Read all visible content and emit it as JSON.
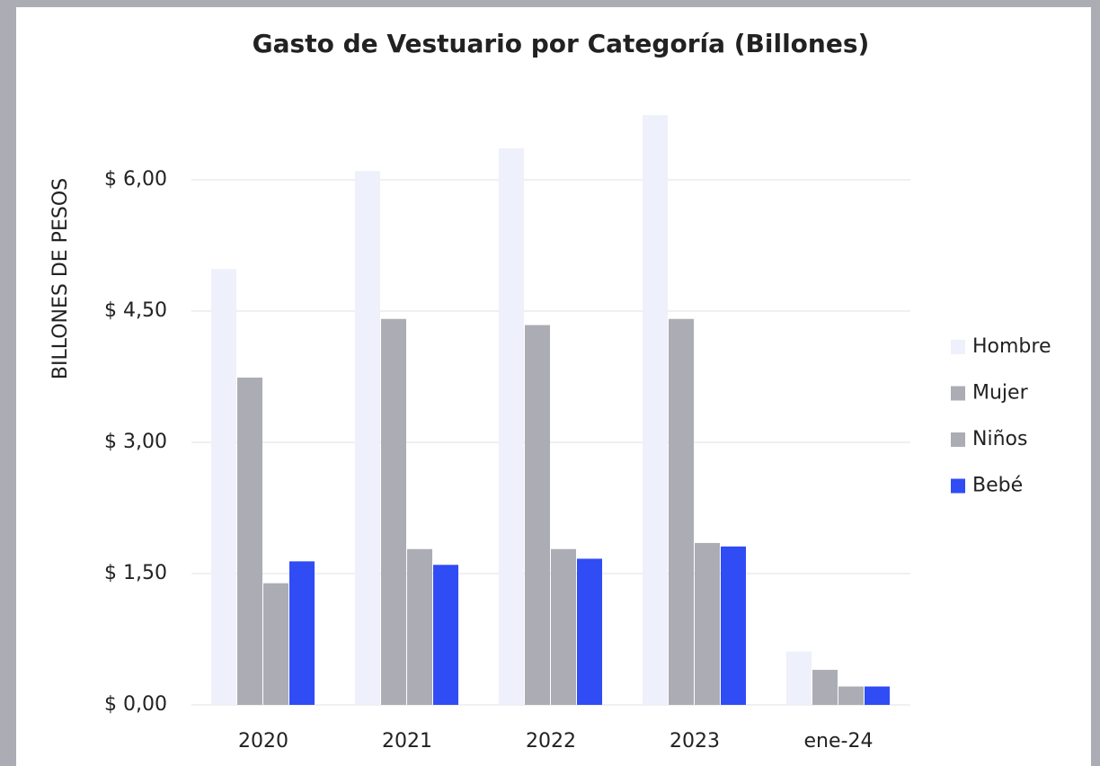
{
  "chart_data": {
    "type": "bar",
    "title": "Gasto de Vestuario por Categoría (Billones)",
    "y_label": "BILLONES DE PESOS",
    "categories": [
      "2020",
      "2021",
      "2022",
      "2023",
      "ene-24"
    ],
    "series": [
      {
        "name": "Hombre",
        "color": "#eef0fb",
        "values": [
          4.98,
          6.1,
          6.36,
          6.74,
          0.61
        ]
      },
      {
        "name": "Mujer",
        "color": "#acacb4",
        "values": [
          3.74,
          4.41,
          4.34,
          4.41,
          0.4
        ]
      },
      {
        "name": "Niños",
        "color": "#acacb4",
        "values": [
          1.39,
          1.78,
          1.78,
          1.85,
          0.21
        ]
      },
      {
        "name": "Bebé",
        "color": "#2f4cf5",
        "values": [
          1.64,
          1.6,
          1.67,
          1.81,
          0.21
        ]
      }
    ],
    "ylim": [
      0,
      6.9
    ],
    "yticks": [
      {
        "value": 0,
        "label": "$ 0,00"
      },
      {
        "value": 1.5,
        "label": "$ 1,50"
      },
      {
        "value": 3,
        "label": "$ 3,00"
      },
      {
        "value": 4.5,
        "label": "$ 4,50"
      },
      {
        "value": 6,
        "label": "$ 6,00"
      }
    ],
    "grid": true,
    "legend": "right"
  }
}
